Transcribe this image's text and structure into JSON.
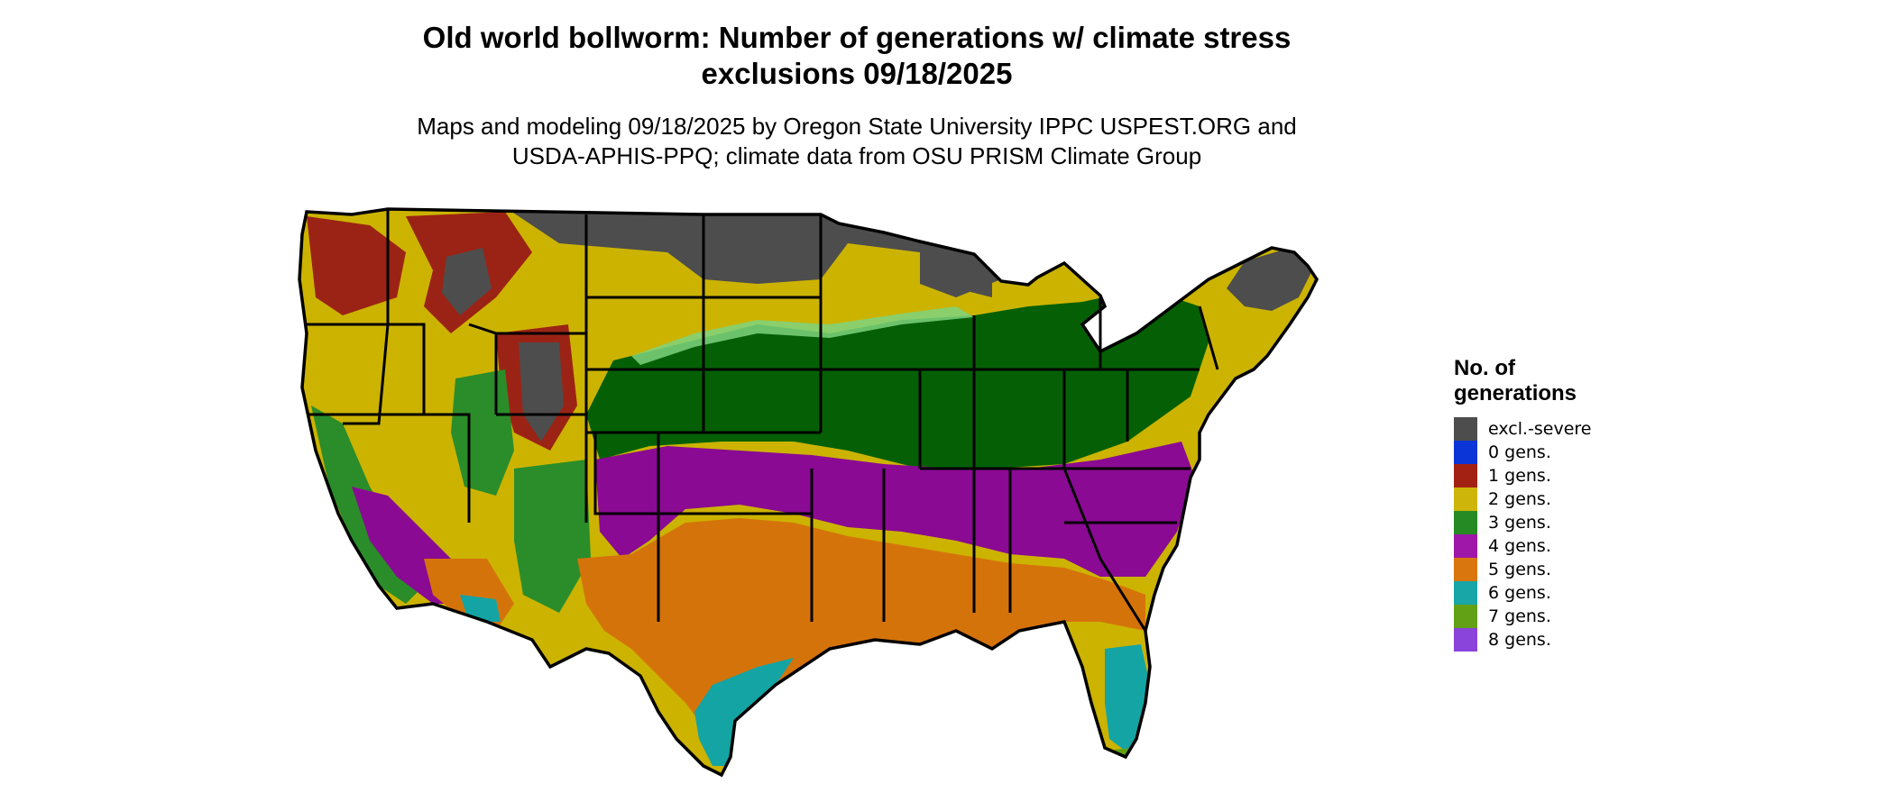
{
  "title": {
    "line1": "Old world bollworm: Number of generations w/ climate stress",
    "line2": "exclusions 09/18/2025"
  },
  "subtitle": {
    "line1": "Maps and modeling 09/18/2025 by Oregon State University IPPC USPEST.ORG and",
    "line2": "USDA-APHIS-PPQ; climate data from OSU PRISM Climate Group"
  },
  "legend": {
    "title_line1": "No. of",
    "title_line2": "generations",
    "items": [
      {
        "label": "excl.-severe",
        "color": "#4d4d4d"
      },
      {
        "label": "0 gens.",
        "color": "#0b35d6"
      },
      {
        "label": "1 gens.",
        "color": "#a32113"
      },
      {
        "label": "2 gens.",
        "color": "#cdb50a"
      },
      {
        "label": "3 gens.",
        "color": "#268a24"
      },
      {
        "label": "4 gens.",
        "color": "#9e17a8"
      },
      {
        "label": "5 gens.",
        "color": "#d9760e"
      },
      {
        "label": "6 gens.",
        "color": "#18a6a6"
      },
      {
        "label": "7 gens.",
        "color": "#62a116"
      },
      {
        "label": "8 gens.",
        "color": "#8a44dc"
      }
    ]
  },
  "map": {
    "region_colors": {
      "excl": "#4d4d4d",
      "one": "#9b2315",
      "two": "#ccb300",
      "three_dark": "#056005",
      "three": "#2a8d2a",
      "four": "#8a0a93",
      "five": "#d5730b",
      "six": "#14a4a4",
      "seven": "#5ea214",
      "border": "#000000"
    }
  }
}
